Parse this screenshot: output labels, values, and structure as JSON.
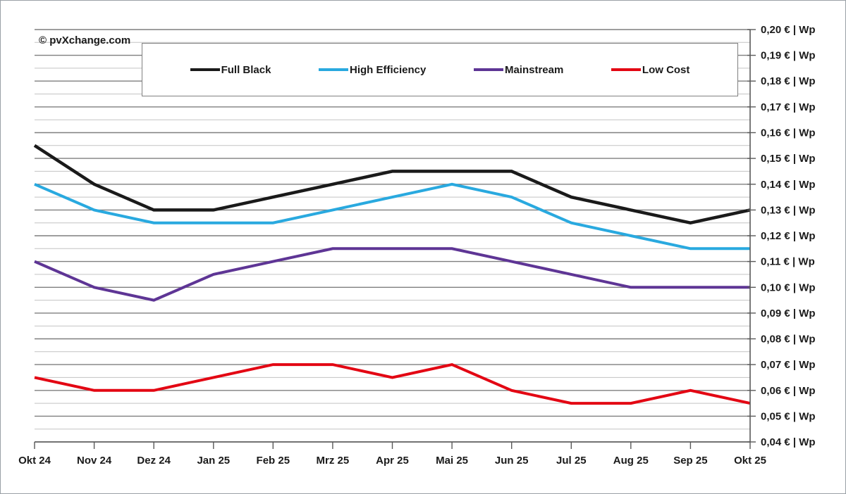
{
  "watermark": "© pvXchange.com",
  "chart_data": {
    "type": "line",
    "title": "",
    "xlabel": "",
    "ylabel": "€ | Wp",
    "categories": [
      "Okt 24",
      "Nov 24",
      "Dez 24",
      "Jan 25",
      "Feb 25",
      "Mrz 25",
      "Apr 25",
      "Mai 25",
      "Jun 25",
      "Jul 25",
      "Aug 25",
      "Sep 25",
      "Okt 25"
    ],
    "series": [
      {
        "name": "Full Black",
        "color": "#1a1a1a",
        "values": [
          0.155,
          0.14,
          0.13,
          0.13,
          0.135,
          0.14,
          0.145,
          0.145,
          0.145,
          0.135,
          0.13,
          0.125,
          0.13
        ]
      },
      {
        "name": "High Efficiency",
        "color": "#29a9df",
        "values": [
          0.14,
          0.13,
          0.125,
          0.125,
          0.125,
          0.13,
          0.135,
          0.14,
          0.135,
          0.125,
          0.12,
          0.115,
          0.115
        ]
      },
      {
        "name": "Mainstream",
        "color": "#5e3595",
        "values": [
          0.11,
          0.1,
          0.095,
          0.105,
          0.11,
          0.115,
          0.115,
          0.115,
          0.11,
          0.105,
          0.1,
          0.1,
          0.1
        ]
      },
      {
        "name": "Low Cost",
        "color": "#e30613",
        "values": [
          0.065,
          0.06,
          0.06,
          0.065,
          0.07,
          0.07,
          0.065,
          0.07,
          0.06,
          0.055,
          0.055,
          0.06,
          0.055
        ]
      }
    ],
    "y_axis": {
      "min": 0.04,
      "max": 0.2,
      "major_step": 0.01,
      "minor_step": 0.005,
      "side": "right",
      "labels": [
        "0,20 € | Wp",
        "0,19 € | Wp",
        "0,18 € | Wp",
        "0,17 € | Wp",
        "0,16 € | Wp",
        "0,15 € | Wp",
        "0,14 € | Wp",
        "0,13 € | Wp",
        "0,12 € | Wp",
        "0,11 € | Wp",
        "0,10 € | Wp",
        "0,09 € | Wp",
        "0,08 € | Wp",
        "0,07 € | Wp",
        "0,06 € | Wp",
        "0,05 € | Wp",
        "0,04 € | Wp"
      ]
    },
    "grid": "horizontal major+minor",
    "legend_position": "top"
  },
  "style": {
    "major_grid_color": "#7f7f7f",
    "minor_grid_color": "#c3c3c3",
    "axis_color": "#595959",
    "text_color": "#1a1a1a"
  }
}
